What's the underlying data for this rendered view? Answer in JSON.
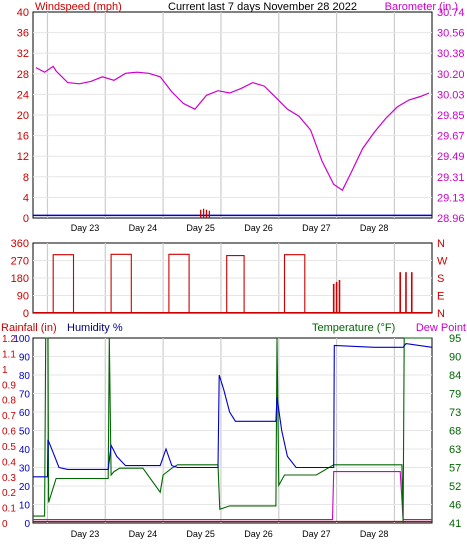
{
  "chart_data": [
    {
      "id": "wind_baro",
      "type": "line",
      "title": "Current last 7 days November 28 2022",
      "left_axis_label": "Windspeed (mph)",
      "right_axis_label": "Barometer (in.)",
      "left_ticks": [
        "0",
        "4",
        "8",
        "12",
        "16",
        "20",
        "24",
        "28",
        "32",
        "36",
        "40"
      ],
      "right_ticks": [
        "28.96",
        "29.13",
        "29.31",
        "29.49",
        "29.67",
        "29.85",
        "30.03",
        "30.20",
        "30.38",
        "30.56",
        "30.74"
      ],
      "ylim_left": [
        0,
        40
      ],
      "ylim_right": [
        28.96,
        30.74
      ],
      "x_labels": [
        "Day 23",
        "Day 24",
        "Day 25",
        "Day 26",
        "Day 27",
        "Day 28"
      ],
      "xlim_days": [
        22.1,
        29.0
      ],
      "grid": true,
      "colors": {
        "wind": "#0000cc",
        "gust": "#cc0000",
        "barometer": "#cc00cc",
        "axis_left": "#cc0000",
        "axis_right": "#cc00cc"
      },
      "series": [
        {
          "name": "Barometer (in.)",
          "axis": "right",
          "x": [
            22.15,
            22.3,
            22.45,
            22.5,
            22.7,
            22.9,
            23.1,
            23.3,
            23.5,
            23.7,
            23.9,
            24.1,
            24.3,
            24.5,
            24.7,
            24.9,
            25.1,
            25.3,
            25.5,
            25.7,
            25.9,
            26.1,
            26.3,
            26.5,
            26.7,
            26.9,
            27.1,
            27.3,
            27.45,
            27.6,
            27.8,
            28.0,
            28.2,
            28.4,
            28.6,
            28.8,
            28.95
          ],
          "values": [
            30.26,
            30.22,
            30.27,
            30.23,
            30.13,
            30.12,
            30.14,
            30.18,
            30.15,
            30.21,
            30.22,
            30.21,
            30.18,
            30.05,
            29.95,
            29.9,
            30.02,
            30.06,
            30.04,
            30.08,
            30.13,
            30.1,
            30.0,
            29.9,
            29.84,
            29.72,
            29.45,
            29.25,
            29.2,
            29.35,
            29.56,
            29.7,
            29.82,
            29.92,
            29.98,
            30.01,
            30.04
          ]
        },
        {
          "name": "Windspeed (mph)",
          "axis": "left",
          "x": [
            22.1,
            29.0
          ],
          "values": [
            0.5,
            0.5
          ]
        },
        {
          "name": "Wind gust",
          "axis": "left",
          "x": [
            25.0,
            25.05,
            25.1,
            25.15
          ],
          "values": [
            1.6,
            1.8,
            1.6,
            1.4
          ]
        }
      ]
    },
    {
      "id": "direction",
      "type": "line",
      "left_ticks": [
        "0",
        "90",
        "180",
        "270",
        "360"
      ],
      "right_labels": [
        "N",
        "W",
        "S",
        "E",
        "N"
      ],
      "ylim": [
        0,
        360
      ],
      "x_labels": [
        "Day 23",
        "Day 24",
        "Day 25",
        "Day 26",
        "Day 27",
        "Day 28"
      ],
      "grid": true,
      "colors": {
        "direction": "#cc0000"
      },
      "series": [
        {
          "name": "Wind direction",
          "segments": [
            {
              "x0": 22.45,
              "x1": 22.8,
              "value": 300
            },
            {
              "x0": 23.45,
              "x1": 23.8,
              "value": 302
            },
            {
              "x0": 24.45,
              "x1": 24.8,
              "value": 302
            },
            {
              "x0": 25.45,
              "x1": 25.75,
              "value": 295
            },
            {
              "x0": 26.45,
              "x1": 26.8,
              "value": 300
            }
          ]
        },
        {
          "name": "Wind direction spikes",
          "spikes": [
            {
              "x": 27.3,
              "value": 150
            },
            {
              "x": 27.35,
              "value": 160
            },
            {
              "x": 27.4,
              "value": 170
            },
            {
              "x": 28.45,
              "value": 210
            },
            {
              "x": 28.55,
              "value": 210
            },
            {
              "x": 28.65,
              "value": 210
            }
          ]
        }
      ]
    },
    {
      "id": "rain_hum_temp",
      "type": "line",
      "left_axis_label_1": "Rainfall (in)",
      "left_axis_label_2": "Humidity %",
      "right_axis_label_1": "Temperature (°F)",
      "right_axis_label_2": "Dew Point",
      "humidity_ticks": [
        "0",
        "10",
        "20",
        "30",
        "40",
        "50",
        "60",
        "70",
        "80",
        "90",
        "100"
      ],
      "rain_ticks": [
        "0",
        "0.1",
        "0.2",
        "0.3",
        "0.4",
        "0.5",
        "0.6",
        "0.7",
        "0.8",
        "0.9",
        "1",
        "1.1",
        "1.2"
      ],
      "temp_ticks": [
        "41",
        "46",
        "52",
        "57",
        "63",
        "68",
        "73",
        "79",
        "84",
        "90",
        "95"
      ],
      "ylim_humidity": [
        0,
        100
      ],
      "ylim_rain": [
        0,
        1.2
      ],
      "ylim_temp": [
        41,
        95
      ],
      "x_labels": [
        "Day 23",
        "Day 24",
        "Day 25",
        "Day 26",
        "Day 27",
        "Day 28"
      ],
      "grid": true,
      "colors": {
        "humidity": "#0000cc",
        "temperature": "#006600",
        "dewpoint": "#cc00cc",
        "rain": "#cc0000",
        "axis_right": "#006600"
      },
      "series": [
        {
          "name": "Humidity %",
          "x": [
            22.1,
            22.35,
            22.36,
            22.45,
            22.55,
            22.7,
            23.0,
            23.4,
            23.45,
            23.55,
            23.7,
            24.0,
            24.3,
            24.4,
            24.5,
            24.6,
            25.0,
            25.3,
            25.32,
            25.4,
            25.5,
            25.6,
            26.0,
            26.3,
            26.32,
            26.4,
            26.5,
            26.65,
            27.0,
            27.3,
            27.31,
            28.0,
            28.5,
            28.55,
            29.0
          ],
          "values": [
            25,
            25,
            45,
            38,
            30,
            29,
            29,
            29,
            42,
            36,
            31,
            31,
            31,
            40,
            31,
            30,
            30,
            30,
            80,
            72,
            60,
            55,
            55,
            55,
            68,
            50,
            36,
            30,
            30,
            30,
            96,
            95,
            95,
            97,
            95
          ]
        },
        {
          "name": "Temperature (°F)",
          "x": [
            22.1,
            22.3,
            22.32,
            22.36,
            22.37,
            22.5,
            22.6,
            23.0,
            23.4,
            23.42,
            23.45,
            23.5,
            23.6,
            24.0,
            24.3,
            24.35,
            24.5,
            24.6,
            25.3,
            25.33,
            25.5,
            25.6,
            26.0,
            26.3,
            26.32,
            26.35,
            26.45,
            26.6,
            27.0,
            27.3,
            28.0,
            28.48,
            28.5,
            28.52,
            29.0
          ],
          "values": [
            43,
            43,
            95,
            95,
            47,
            54,
            54,
            54,
            54,
            95,
            55,
            56,
            57,
            57,
            50,
            55,
            57,
            58,
            58,
            45,
            46,
            46,
            46,
            46,
            95,
            52,
            55,
            55,
            55,
            58,
            58,
            58,
            41,
            95,
            95
          ]
        },
        {
          "name": "Dew Point",
          "x": [
            22.1,
            27.28,
            27.3,
            28.4,
            28.45,
            28.5,
            29.0
          ],
          "values": [
            42,
            42,
            56,
            56,
            56,
            42,
            42
          ]
        },
        {
          "name": "Rainfall (in)",
          "x": [
            22.1,
            29.0
          ],
          "values": [
            0.01,
            0.01
          ]
        }
      ]
    }
  ]
}
